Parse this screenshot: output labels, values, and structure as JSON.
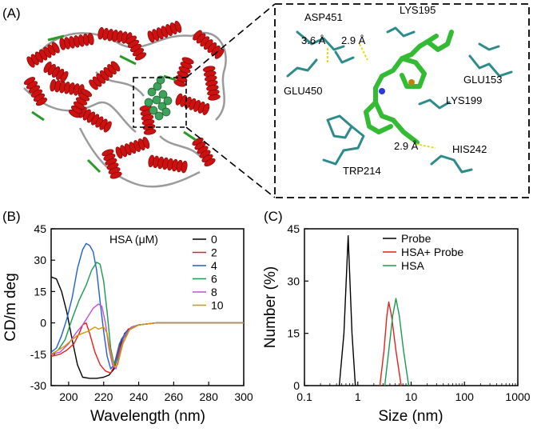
{
  "panel_labels": {
    "a": "(A)",
    "b": "(B)",
    "c": "(C)"
  },
  "panel_a": {
    "residues": [
      "ASP451",
      "LYS195",
      "GLU450",
      "GLU153",
      "LYS199",
      "HIS242",
      "TRP214"
    ],
    "distances": [
      "3.6 Å",
      "2.9 Å",
      "2.9 Å"
    ],
    "colors": {
      "helix": "#cc1111",
      "loop": "#2a9a2a",
      "ligand": "#33bb33",
      "residue": "#2e8b8b",
      "hbond": "#e6d800"
    }
  },
  "chart_data": [
    {
      "type": "line",
      "panel": "(B)",
      "xlabel": "Wavelength (nm)",
      "ylabel": "CD/m deg",
      "xlim": [
        190,
        300
      ],
      "ylim": [
        -30,
        45
      ],
      "xticks": [
        200,
        220,
        240,
        260,
        280,
        300
      ],
      "yticks": [
        -30,
        -15,
        0,
        15,
        30,
        45
      ],
      "legend_title": "HSA (μM)",
      "legend_position": "top-right",
      "series": [
        {
          "name": "0",
          "color": "#000000",
          "points": [
            [
              190,
              22
            ],
            [
              193,
              21
            ],
            [
              196,
              15
            ],
            [
              199,
              5
            ],
            [
              202,
              -8
            ],
            [
              205,
              -20
            ],
            [
              208,
              -26
            ],
            [
              212,
              -26.5
            ],
            [
              216,
              -26.5
            ],
            [
              220,
              -26
            ],
            [
              223,
              -25
            ],
            [
              226,
              -22
            ],
            [
              229,
              -12
            ],
            [
              232,
              -5
            ],
            [
              236,
              -2
            ],
            [
              240,
              -1
            ],
            [
              250,
              0
            ],
            [
              260,
              0
            ],
            [
              280,
              0
            ],
            [
              300,
              0
            ]
          ]
        },
        {
          "name": "2",
          "color": "#e8201a",
          "points": [
            [
              190,
              -16
            ],
            [
              195,
              -15
            ],
            [
              199,
              -13
            ],
            [
              203,
              -10
            ],
            [
              206,
              -5
            ],
            [
              208,
              -1
            ],
            [
              210,
              0
            ],
            [
              212,
              -5
            ],
            [
              215,
              -14
            ],
            [
              218,
              -20
            ],
            [
              221,
              -23
            ],
            [
              224,
              -24
            ],
            [
              227,
              -19
            ],
            [
              230,
              -8
            ],
            [
              234,
              -3
            ],
            [
              240,
              -1
            ],
            [
              250,
              0
            ],
            [
              260,
              0
            ],
            [
              280,
              0
            ],
            [
              300,
              0
            ]
          ]
        },
        {
          "name": "4",
          "color": "#1f5fd0",
          "points": [
            [
              190,
              -14
            ],
            [
              193,
              -12
            ],
            [
              196,
              -6
            ],
            [
              199,
              2
            ],
            [
              202,
              12
            ],
            [
              205,
              26
            ],
            [
              208,
              35
            ],
            [
              210,
              38
            ],
            [
              212,
              37
            ],
            [
              214,
              34
            ],
            [
              216,
              25
            ],
            [
              218,
              10
            ],
            [
              220,
              -4
            ],
            [
              222,
              -16
            ],
            [
              224,
              -22
            ],
            [
              226,
              -20
            ],
            [
              229,
              -10
            ],
            [
              233,
              -4
            ],
            [
              240,
              -1
            ],
            [
              250,
              0
            ],
            [
              260,
              0
            ],
            [
              280,
              0
            ],
            [
              300,
              0
            ]
          ]
        },
        {
          "name": "6",
          "color": "#1a9a50",
          "points": [
            [
              190,
              -15
            ],
            [
              194,
              -13
            ],
            [
              198,
              -8
            ],
            [
              202,
              2
            ],
            [
              206,
              11
            ],
            [
              210,
              18
            ],
            [
              213,
              25
            ],
            [
              216,
              29
            ],
            [
              218,
              28
            ],
            [
              220,
              20
            ],
            [
              222,
              5
            ],
            [
              224,
              -12
            ],
            [
              226,
              -20
            ],
            [
              228,
              -17
            ],
            [
              231,
              -8
            ],
            [
              236,
              -2
            ],
            [
              240,
              -1
            ],
            [
              250,
              0
            ],
            [
              260,
              0
            ],
            [
              280,
              0
            ],
            [
              300,
              0
            ]
          ]
        },
        {
          "name": "8",
          "color": "#c050d8",
          "points": [
            [
              190,
              -15
            ],
            [
              195,
              -14
            ],
            [
              200,
              -10
            ],
            [
              204,
              -5
            ],
            [
              208,
              -1
            ],
            [
              211,
              3
            ],
            [
              214,
              7
            ],
            [
              217,
              9
            ],
            [
              219,
              8
            ],
            [
              221,
              0
            ],
            [
              223,
              -12
            ],
            [
              225,
              -20
            ],
            [
              227,
              -22
            ],
            [
              229,
              -15
            ],
            [
              232,
              -6
            ],
            [
              236,
              -2
            ],
            [
              240,
              -1
            ],
            [
              250,
              0
            ],
            [
              260,
              0
            ],
            [
              280,
              0
            ],
            [
              300,
              0
            ]
          ]
        },
        {
          "name": "10",
          "color": "#d99600",
          "points": [
            [
              190,
              -15
            ],
            [
              194,
              -13
            ],
            [
              198,
              -11
            ],
            [
              202,
              -8
            ],
            [
              205,
              -6
            ],
            [
              208,
              -5
            ],
            [
              211,
              -4
            ],
            [
              213,
              -3
            ],
            [
              215,
              -2
            ],
            [
              217,
              -3
            ],
            [
              220,
              -2
            ],
            [
              222,
              -5
            ],
            [
              224,
              -14
            ],
            [
              226,
              -21
            ],
            [
              228,
              -20
            ],
            [
              231,
              -10
            ],
            [
              235,
              -3
            ],
            [
              240,
              -1
            ],
            [
              250,
              0
            ],
            [
              260,
              0
            ],
            [
              280,
              0
            ],
            [
              300,
              0
            ]
          ]
        }
      ]
    },
    {
      "type": "line",
      "panel": "(C)",
      "xlabel": "Size (nm)",
      "ylabel": "Number (%)",
      "xscale": "log",
      "xlim": [
        0.1,
        1000
      ],
      "ylim": [
        0,
        45
      ],
      "xtick_labels": [
        "0.1",
        "1",
        "10",
        "100",
        "1000"
      ],
      "yticks": [
        0,
        15,
        30,
        45
      ],
      "legend_position": "top-right",
      "series": [
        {
          "name": "Probe",
          "color": "#000000",
          "points": [
            [
              0.45,
              0
            ],
            [
              0.55,
              15
            ],
            [
              0.66,
              43
            ],
            [
              0.78,
              15
            ],
            [
              0.9,
              0
            ]
          ]
        },
        {
          "name": "HSA+ Probe",
          "color": "#e8201a",
          "points": [
            [
              2.6,
              0
            ],
            [
              3.1,
              10
            ],
            [
              3.5,
              20
            ],
            [
              3.8,
              24
            ],
            [
              4.3,
              20
            ],
            [
              5.2,
              10
            ],
            [
              6.5,
              0
            ]
          ]
        },
        {
          "name": "HSA",
          "color": "#1a9a50",
          "points": [
            [
              3.2,
              0
            ],
            [
              3.8,
              10
            ],
            [
              4.5,
              20
            ],
            [
              5.2,
              25
            ],
            [
              6.0,
              20
            ],
            [
              7.2,
              10
            ],
            [
              9.0,
              0
            ]
          ]
        }
      ]
    }
  ]
}
